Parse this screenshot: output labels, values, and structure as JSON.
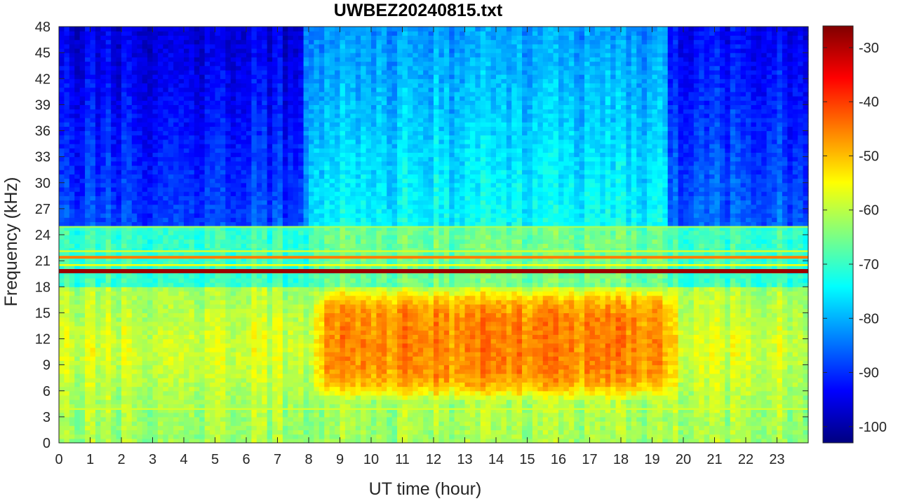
{
  "chart_data": {
    "type": "heatmap",
    "title": "UWBEZ20240815.txt",
    "xlabel": "UT time (hour)",
    "ylabel": "Frequency (kHz)",
    "xlim": [
      0,
      24
    ],
    "ylim": [
      0,
      48
    ],
    "x_ticks": [
      "0",
      "1",
      "2",
      "3",
      "4",
      "5",
      "6",
      "7",
      "8",
      "9",
      "10",
      "11",
      "12",
      "13",
      "14",
      "15",
      "16",
      "17",
      "18",
      "19",
      "20",
      "21",
      "22",
      "23"
    ],
    "y_ticks": [
      "0",
      "3",
      "6",
      "9",
      "12",
      "15",
      "18",
      "21",
      "24",
      "27",
      "30",
      "33",
      "36",
      "39",
      "42",
      "45",
      "48"
    ],
    "colorbar": {
      "colormap": "jet",
      "clim": [
        -103,
        -26
      ],
      "ticks": [
        "-100",
        "-90",
        "-80",
        "-70",
        "-60",
        "-50",
        "-40",
        "-30"
      ],
      "tick_values": [
        -100,
        -90,
        -80,
        -70,
        -60,
        -50,
        -40,
        -30
      ]
    },
    "features": [
      {
        "kind": "narrowband",
        "freq_khz": 19.8,
        "t_start": 0,
        "t_end": 24,
        "level_db": -28
      },
      {
        "kind": "narrowband",
        "freq_khz": 21.4,
        "t_start": 0,
        "t_end": 24,
        "level_db": -45
      },
      {
        "kind": "narrowband",
        "freq_khz": 20.5,
        "t_start": 0,
        "t_end": 24,
        "level_db": -55
      },
      {
        "kind": "narrowband",
        "freq_khz": 22.1,
        "t_start": 0,
        "t_end": 24,
        "level_db": -58
      },
      {
        "kind": "narrowband",
        "freq_khz": 24.9,
        "t_start": 0,
        "t_end": 24,
        "level_db": -62
      },
      {
        "kind": "narrowband",
        "freq_khz": 3.9,
        "t_start": 0,
        "t_end": 24,
        "level_db": -58
      },
      {
        "kind": "broadband_day",
        "f_low_khz": 6,
        "f_high_khz": 17,
        "t_start": 8,
        "t_end": 20,
        "level_db": -48
      },
      {
        "kind": "background_low",
        "f_low_khz": 0,
        "f_high_khz": 18,
        "t_start": 0,
        "t_end": 24,
        "level_db": -60
      },
      {
        "kind": "background_high_night",
        "f_low_khz": 25,
        "f_high_khz": 48,
        "t_start": 0,
        "t_end": 7.8,
        "level_db": -88
      },
      {
        "kind": "background_high_day",
        "f_low_khz": 25,
        "f_high_khz": 48,
        "t_start": 8,
        "t_end": 19.5,
        "level_db": -74
      },
      {
        "kind": "background_high_night",
        "f_low_khz": 25,
        "f_high_khz": 48,
        "t_start": 19.5,
        "t_end": 24,
        "level_db": -86
      }
    ]
  }
}
